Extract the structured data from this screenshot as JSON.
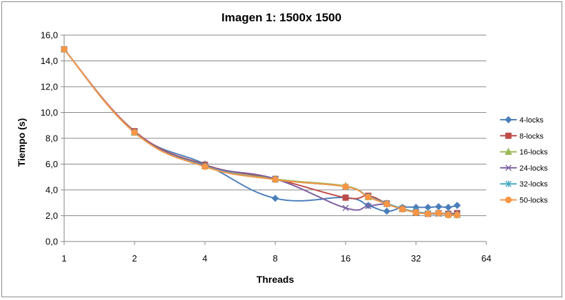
{
  "chart_data": {
    "type": "line",
    "title": "Imagen 1: 1500x 1500",
    "xlabel": "Threads",
    "ylabel": "Tiempo (s)",
    "x_scale": "log2",
    "xlim": [
      1,
      64
    ],
    "ylim": [
      0,
      16
    ],
    "x_ticks": [
      "1",
      "2",
      "4",
      "8",
      "16",
      "32",
      "64"
    ],
    "y_ticks": [
      "0,0",
      "2,0",
      "4,0",
      "6,0",
      "8,0",
      "10,0",
      "12,0",
      "14,0",
      "16,0"
    ],
    "grid": "horizontal",
    "legend_position": "right",
    "x": [
      1,
      2,
      4,
      8,
      16,
      20,
      24,
      28,
      32,
      36,
      40,
      44,
      48
    ],
    "series": [
      {
        "name": "4-locks",
        "color": "#4a7ebb",
        "marker": "diamond",
        "values": [
          14.9,
          8.5,
          6.0,
          3.35,
          3.4,
          2.8,
          2.35,
          2.65,
          2.65,
          2.65,
          2.7,
          2.65,
          2.8
        ]
      },
      {
        "name": "8-locks",
        "color": "#be4b48",
        "marker": "square",
        "values": [
          14.9,
          8.55,
          5.95,
          4.85,
          3.4,
          3.55,
          2.95,
          2.55,
          2.25,
          2.15,
          2.2,
          2.15,
          2.2
        ]
      },
      {
        "name": "16-locks",
        "color": "#98b954",
        "marker": "triangle",
        "values": [
          14.9,
          8.45,
          5.85,
          4.85,
          4.3,
          3.45,
          2.95,
          2.55,
          2.3,
          2.2,
          2.2,
          2.1,
          2.1
        ]
      },
      {
        "name": "24-locks",
        "color": "#7d60a0",
        "marker": "x",
        "values": [
          14.9,
          8.5,
          5.9,
          4.85,
          2.6,
          2.75,
          2.9,
          2.5,
          2.3,
          2.15,
          2.15,
          2.1,
          2.15
        ]
      },
      {
        "name": "32-locks",
        "color": "#46aac5",
        "marker": "star",
        "values": [
          14.9,
          8.45,
          5.85,
          4.8,
          4.25,
          3.5,
          2.95,
          2.55,
          2.3,
          2.2,
          2.2,
          2.1,
          2.05
        ]
      },
      {
        "name": "50-locks",
        "color": "#f79646",
        "marker": "circle",
        "values": [
          14.9,
          8.45,
          5.8,
          4.8,
          4.25,
          3.45,
          2.9,
          2.5,
          2.25,
          2.15,
          2.2,
          2.05,
          2.05
        ]
      }
    ]
  }
}
